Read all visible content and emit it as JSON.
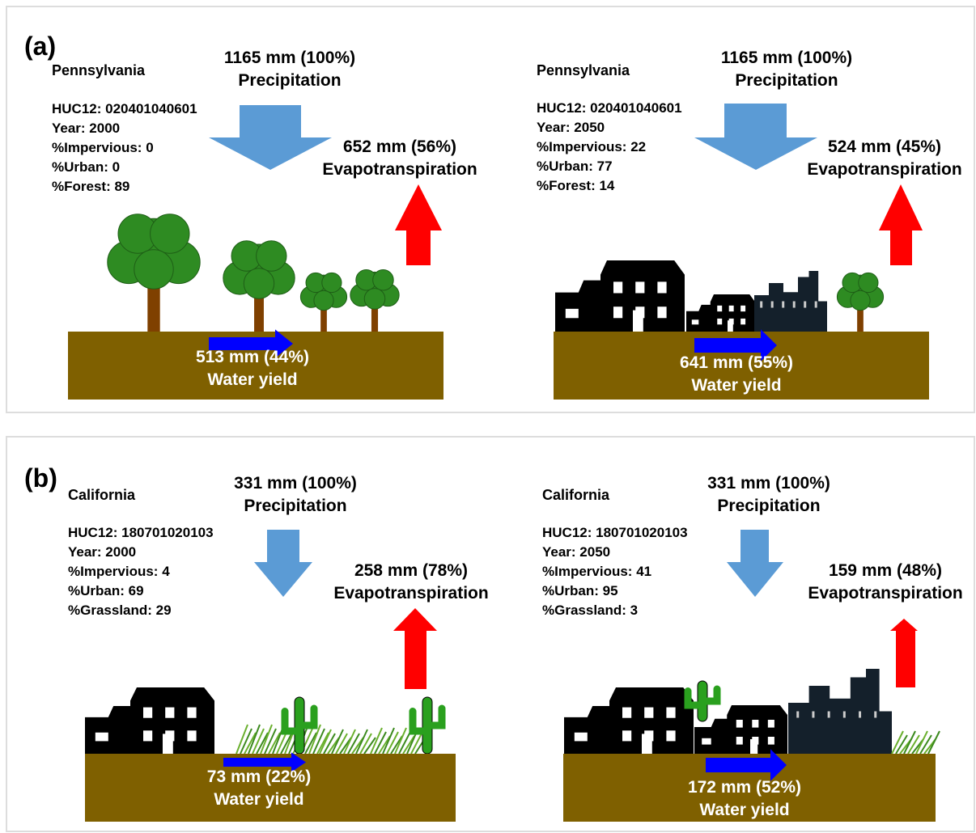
{
  "panels": [
    {
      "label": "(a)",
      "scenes": [
        {
          "state": "Pennsylvania",
          "info": [
            "HUC12: 020401040601",
            "Year: 2000",
            "%Impervious: 0",
            "%Urban: 0",
            "%Forest: 89"
          ],
          "precipitation": {
            "amount": "1165 mm (100%)",
            "label": "Precipitation"
          },
          "evapotranspiration": {
            "amount": "652 mm (56%)",
            "label": "Evapotranspiration"
          },
          "water_yield": {
            "amount": "513 mm (44%)",
            "label": "Water yield"
          }
        },
        {
          "state": "Pennsylvania",
          "info": [
            "HUC12: 020401040601",
            "Year: 2050",
            "%Impervious: 22",
            "%Urban: 77",
            "%Forest: 14"
          ],
          "precipitation": {
            "amount": "1165 mm (100%)",
            "label": "Precipitation"
          },
          "evapotranspiration": {
            "amount": "524 mm (45%)",
            "label": "Evapotranspiration"
          },
          "water_yield": {
            "amount": "641 mm (55%)",
            "label": "Water yield"
          }
        }
      ]
    },
    {
      "label": "(b)",
      "scenes": [
        {
          "state": "California",
          "info": [
            "HUC12: 180701020103",
            "Year: 2000",
            "%Impervious: 4",
            "%Urban: 69",
            "%Grassland: 29"
          ],
          "precipitation": {
            "amount": "331 mm (100%)",
            "label": "Precipitation"
          },
          "evapotranspiration": {
            "amount": "258 mm (78%)",
            "label": "Evapotranspiration"
          },
          "water_yield": {
            "amount": "73 mm (22%)",
            "label": "Water yield"
          }
        },
        {
          "state": "California",
          "info": [
            "HUC12: 180701020103",
            "Year: 2050",
            "%Impervious: 41",
            "%Urban: 95",
            "%Grassland: 3"
          ],
          "precipitation": {
            "amount": "331 mm (100%)",
            "label": "Precipitation"
          },
          "evapotranspiration": {
            "amount": "159 mm (48%)",
            "label": "Evapotranspiration"
          },
          "water_yield": {
            "amount": "172 mm (52%)",
            "label": "Water yield"
          }
        }
      ]
    }
  ]
}
